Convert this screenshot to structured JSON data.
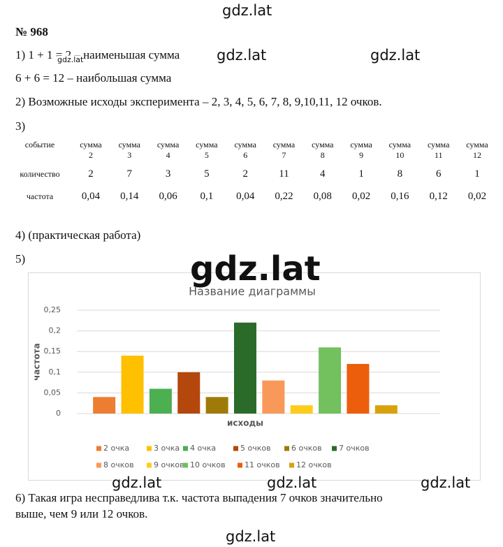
{
  "watermarks": [
    "gdz.lat",
    "gdz.lat",
    "gdz.lat",
    "gdz.lat",
    "gdz.lat",
    "gdz.lat",
    "gdz.lat",
    "gdz.lat",
    "gdz.lat"
  ],
  "title": "№ 968",
  "lines": [
    "1) 1 + 1 = 2 – наименьшая сумма",
    "6 + 6 = 12 – наибольшая сумма",
    "2) Возможные исходы эксперимента – 2, 3, 4, 5, 6, 7, 8, 9,10,11, 12 очков.",
    "3)"
  ],
  "table": {
    "corner": "событие",
    "header": [
      [
        "сумма",
        "2"
      ],
      [
        "сумма",
        "3"
      ],
      [
        "сумма",
        "4"
      ],
      [
        "сумма",
        "5"
      ],
      [
        "сумма",
        "6"
      ],
      [
        "сумма",
        "7"
      ],
      [
        "сумма",
        "8"
      ],
      [
        "сумма",
        "9"
      ],
      [
        "сумма",
        "10"
      ],
      [
        "сумма",
        "11"
      ],
      [
        "сумма",
        "12"
      ]
    ],
    "rows": [
      [
        "количество",
        "2",
        "7",
        "3",
        "5",
        "2",
        "11",
        "4",
        "1",
        "8",
        "6",
        "1"
      ],
      [
        "частота",
        "0,04",
        "0,14",
        "0,06",
        "0,1",
        "0,04",
        "0,22",
        "0,08",
        "0,02",
        "0,16",
        "0,12",
        "0,02"
      ]
    ]
  },
  "lines_after": [
    "4) (практическая работа)",
    "5)"
  ],
  "chart_data": {
    "type": "bar",
    "title": "Название диаграммы",
    "y_label": "частота",
    "x_label": "исходы",
    "categories": [
      "2 очка",
      "3 очка",
      "4 очка",
      "5 очков",
      "6 очков",
      "7 очков",
      "8 очков",
      "9 очков",
      "10 очков",
      "11 очков",
      "12 очков"
    ],
    "colors": [
      "#ed7d31",
      "#ffc000",
      "#4caf50",
      "#b4470b",
      "#a07a08",
      "#2a6b2a",
      "#f8995a",
      "#ffcc1a",
      "#72c05e",
      "#ec5e0c",
      "#d9a20c"
    ],
    "values": [
      0.04,
      0.14,
      0.06,
      0.1,
      0.04,
      0.22,
      0.08,
      0.02,
      0.16,
      0.12,
      0.02
    ],
    "ylim": [
      0,
      0.25
    ],
    "yticks": [
      0,
      {
        "value": 0.05,
        "label": "0,05"
      },
      {
        "value": 0.1,
        "label": "0,1"
      },
      {
        "value": 0.15,
        "label": "0,15"
      },
      {
        "value": 0.2,
        "label": "0,2"
      },
      {
        "value": 0.25,
        "label": "0,25"
      }
    ],
    "grid": true,
    "legend": "bottom"
  },
  "conclusion": [
    "6) Такая игра несправедлива т.к. частота выпадения 7 очков значительно",
    "выше, чем 9 или 12 очков."
  ]
}
